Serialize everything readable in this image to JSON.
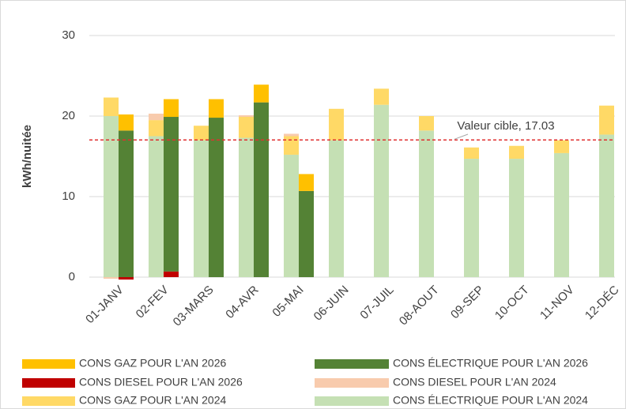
{
  "chart_data": {
    "type": "bar",
    "y_label": "kWh/nuitée",
    "categories": [
      "01-JANV",
      "02-FEV",
      "03-MARS",
      "04-AVR",
      "05-MAI",
      "06-JUIN",
      "07-JUIL",
      "08-AOUT",
      "09-SEP",
      "10-OCT",
      "11-NOV",
      "12-DÉC"
    ],
    "series": [
      {
        "name": "CONS GAZ POUR L'AN 2026",
        "color": "#ffc000",
        "values": [
          2.0,
          2.2,
          2.3,
          2.2,
          2.1,
          null,
          null,
          null,
          null,
          null,
          null,
          null
        ]
      },
      {
        "name": "CONS ÉLECTRIQUE POUR L'AN 2026",
        "color": "#548235",
        "values": [
          18.2,
          19.2,
          19.8,
          21.7,
          10.7,
          null,
          null,
          null,
          null,
          null,
          null,
          null
        ]
      },
      {
        "name": "CONS DIESEL POUR L'AN 2026",
        "color": "#c00000",
        "values": [
          -0.3,
          0.7,
          0,
          0,
          0,
          null,
          null,
          null,
          null,
          null,
          null,
          null
        ]
      },
      {
        "name": "CONS DIESEL POUR L'AN 2024",
        "color": "#f8cbad",
        "values": [
          -0.2,
          0.8,
          0,
          0.2,
          0.3,
          0,
          0,
          0,
          0,
          0,
          0,
          0
        ]
      },
      {
        "name": "CONS GAZ POUR L'AN 2024",
        "color": "#ffd966",
        "values": [
          2.3,
          2.0,
          1.8,
          2.6,
          2.3,
          3.9,
          2.0,
          1.8,
          1.4,
          1.6,
          1.6,
          3.6
        ]
      },
      {
        "name": "CONS ÉLECTRIQUE POUR L'AN 2024",
        "color": "#c5e0b4",
        "values": [
          20.0,
          17.5,
          17.0,
          17.3,
          15.2,
          17.0,
          21.4,
          18.2,
          14.7,
          14.7,
          15.4,
          17.7
        ]
      }
    ],
    "target": {
      "value": 17.03,
      "label": "Valeur cible, 17.03",
      "color": "#e03030"
    },
    "ylim": [
      0,
      30
    ],
    "yticks": [
      0,
      10,
      20,
      30
    ],
    "grid": true
  }
}
